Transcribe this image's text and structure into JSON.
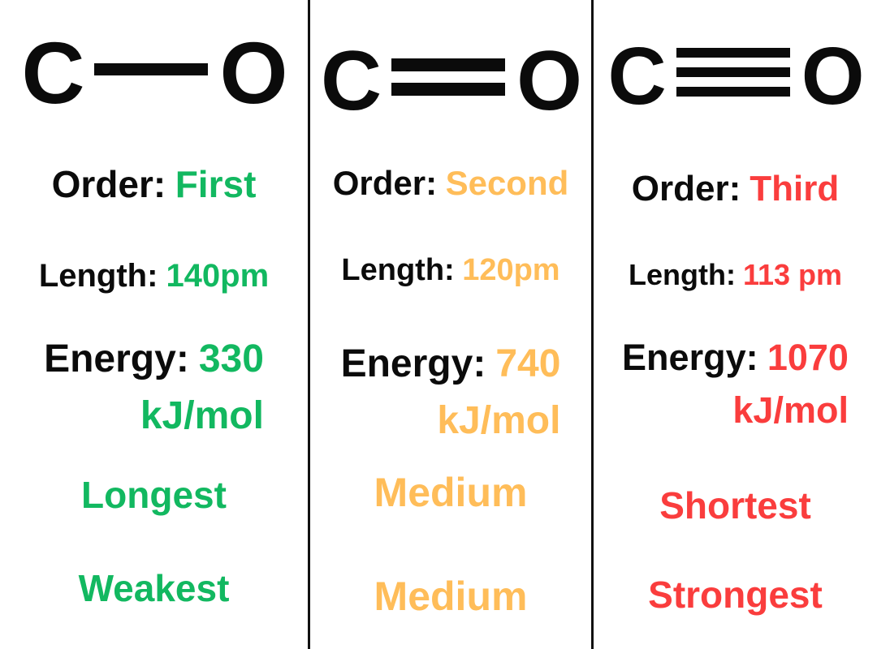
{
  "title": "Carbon-oxygen bond comparison infographic",
  "colors": {
    "background": "#ffffff",
    "text_black": "#0b0b0b",
    "divider_black": "#111111",
    "green": "#12B860",
    "orange": "#FFBD59",
    "red": "#FA3D3D"
  },
  "columns": [
    {
      "name": "single-bond",
      "atom_left": "C",
      "atom_right": "O",
      "bond_order_count": 1,
      "order_label": "Order:",
      "order_value": "First",
      "length_label": "Length:",
      "length_value": "140pm",
      "energy_label": "Energy:",
      "energy_value": "330",
      "energy_unit": "kJ/mol",
      "length_note": "Longest",
      "strength_note": "Weakest",
      "accent_color": "#12B860"
    },
    {
      "name": "double-bond",
      "atom_left": "C",
      "atom_right": "O",
      "bond_order_count": 2,
      "order_label": "Order:",
      "order_value": "Second",
      "length_label": "Length:",
      "length_value": "120pm",
      "energy_label": "Energy:",
      "energy_value": "740",
      "energy_unit": "kJ/mol",
      "length_note": "Medium",
      "strength_note": "Medium",
      "accent_color": "#FFBD59"
    },
    {
      "name": "triple-bond",
      "atom_left": "C",
      "atom_right": "O",
      "bond_order_count": 3,
      "order_label": "Order:",
      "order_value": "Third",
      "length_label": "Length:",
      "length_value": "113 pm",
      "energy_label": "Energy:",
      "energy_value": "1070",
      "energy_unit": "kJ/mol",
      "length_note": "Shortest",
      "strength_note": "Strongest",
      "accent_color": "#FA3D3D"
    }
  ]
}
